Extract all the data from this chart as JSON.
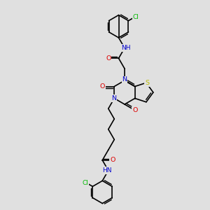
{
  "background_color": "#e0e0e0",
  "atom_colors": {
    "C": "#000000",
    "N": "#0000cc",
    "O": "#dd0000",
    "S": "#bbbb00",
    "Cl": "#00bb00",
    "H": "#000000"
  },
  "figsize": [
    3.0,
    3.0
  ],
  "dpi": 100,
  "bond_lw": 1.2,
  "font_size": 6.8
}
